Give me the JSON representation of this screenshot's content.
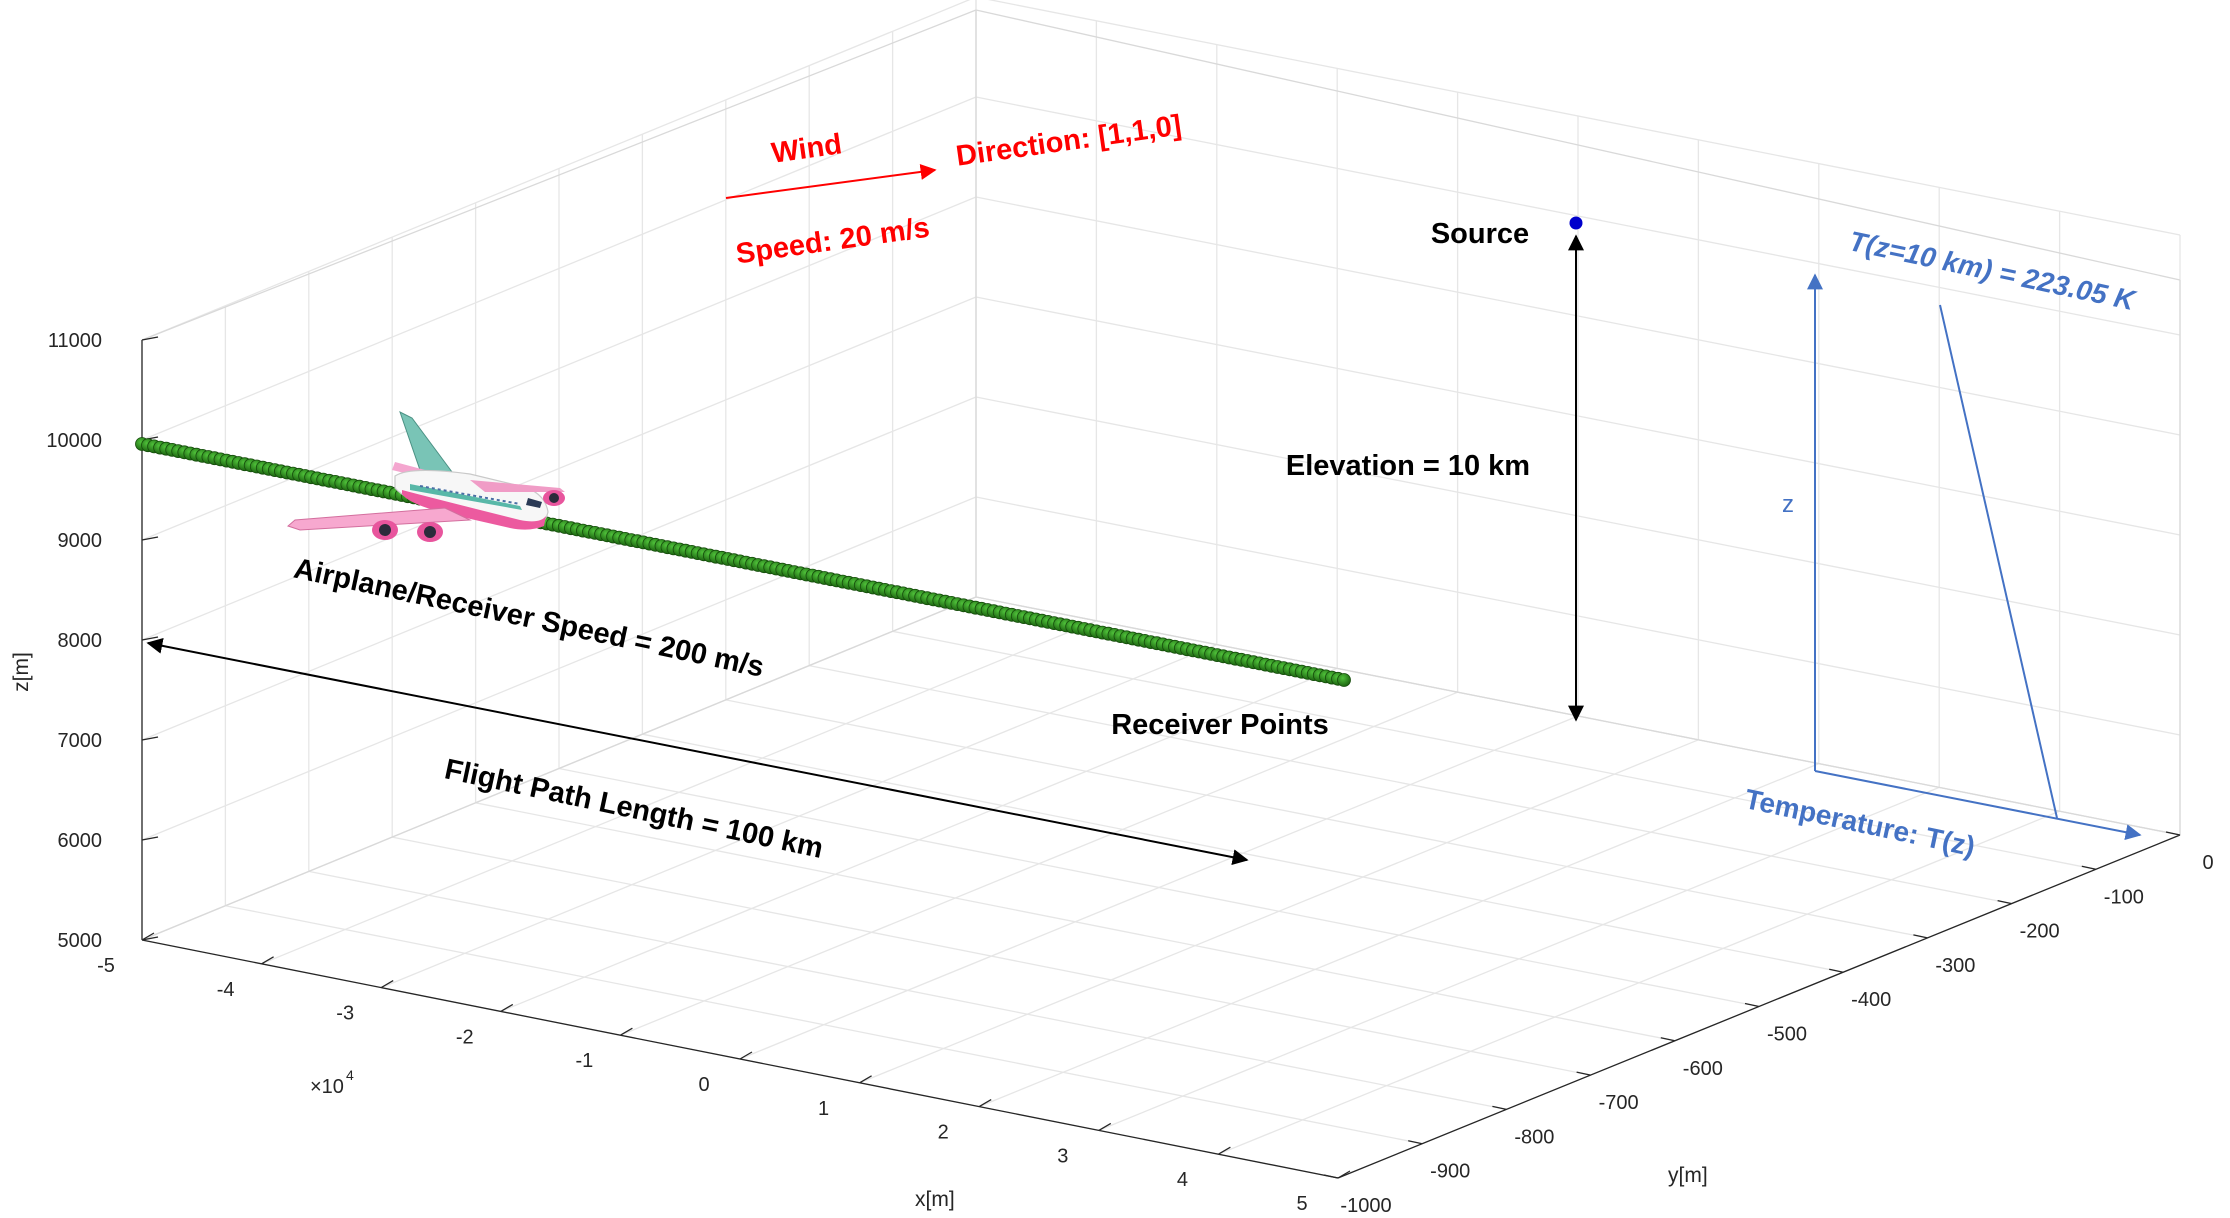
{
  "chart_data": {
    "type": "scatter3d",
    "axes": {
      "x": {
        "label": "x[m]",
        "range": [
          -50000,
          50000
        ],
        "ticks": [
          "-5",
          "-4",
          "-3",
          "-2",
          "-1",
          "0",
          "1",
          "2",
          "3",
          "4",
          "5"
        ],
        "exponent_label": "×10",
        "exponent": "4"
      },
      "y": {
        "label": "y[m]",
        "range": [
          -1000,
          0
        ],
        "ticks": [
          "0",
          "-100",
          "-200",
          "-300",
          "-400",
          "-500",
          "-600",
          "-700",
          "-800",
          "-900",
          "-1000"
        ]
      },
      "z": {
        "label": "z[m]",
        "range": [
          5000,
          11000
        ],
        "ticks": [
          "11000",
          "10000",
          "9000",
          "8000",
          "7000",
          "6000",
          "5000"
        ]
      }
    },
    "grid": true,
    "series": [
      {
        "marker_color": "#2e8b1f",
        "x_start": -50000,
        "x_end": 50000,
        "y": 0,
        "z": 10000,
        "point_count": 200
      }
    ],
    "source_point": {
      "x": 0,
      "y": -500,
      "z": 20000,
      "color": "#0000cc"
    }
  },
  "annotations": {
    "wind_title": "Wind",
    "wind_direction": "Direction: [1,1,0]",
    "wind_speed": "Speed: 20 m/s",
    "source": "Source",
    "elevation": "Elevation = 10 km",
    "airplane_speed": "Airplane/Receiver Speed = 200 m/s",
    "flight_path": "Flight Path Length = 100 km",
    "receiver_points": "Receiver Points",
    "temp_top": "T(z=10 km) = 223.05 K",
    "temp_axis_z": "z",
    "temp_axis_label": "Temperature: T(z)"
  },
  "colors": {
    "red": "#ff0000",
    "blue": "#4472c4",
    "green_marker": "#2e8b1f",
    "source_dot": "#0000cc"
  },
  "icons": {
    "airplane": "airplane-icon"
  }
}
